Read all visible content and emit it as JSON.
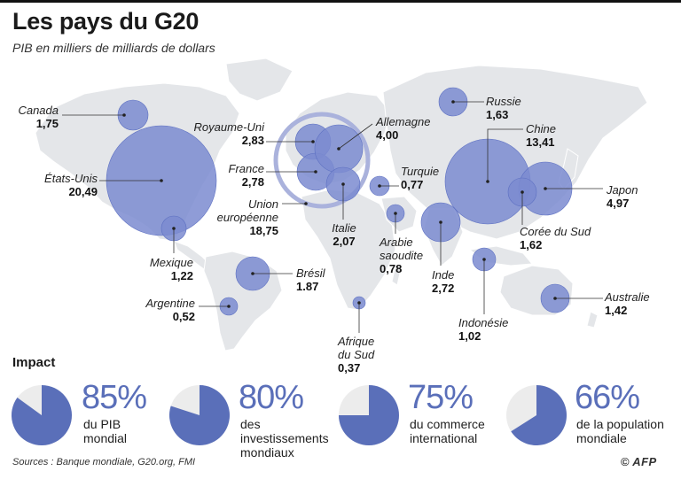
{
  "title": "Les pays du G20",
  "subtitle": "PIB en milliers de milliards de dollars",
  "countries": [
    {
      "name": "Canada",
      "value": "1,75"
    },
    {
      "name": "États-Unis",
      "value": "20,49"
    },
    {
      "name": "Mexique",
      "value": "1,22"
    },
    {
      "name": "Brésil",
      "value": "1.87"
    },
    {
      "name": "Argentine",
      "value": "0,52"
    },
    {
      "name": "Royaume-Uni",
      "value": "2,83"
    },
    {
      "name": "France",
      "value": "2,78"
    },
    {
      "name": "Union européenne",
      "value": "18,75"
    },
    {
      "name": "Allemagne",
      "value": "4,00"
    },
    {
      "name": "Italie",
      "value": "2,07"
    },
    {
      "name": "Turquie",
      "value": "0,77"
    },
    {
      "name": "Arabie saoudite",
      "value": "0,78"
    },
    {
      "name": "Afrique du Sud",
      "value": "0,37"
    },
    {
      "name": "Russie",
      "value": "1,63"
    },
    {
      "name": "Chine",
      "value": "13,41"
    },
    {
      "name": "Inde",
      "value": "2,72"
    },
    {
      "name": "Japon",
      "value": "4,97"
    },
    {
      "name": "Corée du Sud",
      "value": "1,62"
    },
    {
      "name": "Indonésie",
      "value": "1,02"
    },
    {
      "name": "Australie",
      "value": "1,42"
    }
  ],
  "impact": {
    "title": "Impact",
    "items": [
      {
        "percent": "85%",
        "fraction": 0.85,
        "desc_lines": [
          "du PIB",
          "mondial"
        ]
      },
      {
        "percent": "80%",
        "fraction": 0.8,
        "desc_lines": [
          "des",
          "investissements",
          "mondiaux"
        ]
      },
      {
        "percent": "75%",
        "fraction": 0.75,
        "desc_lines": [
          "du commerce",
          "international"
        ]
      },
      {
        "percent": "66%",
        "fraction": 0.66,
        "desc_lines": [
          "de la population",
          "mondiale"
        ]
      }
    ]
  },
  "sources": "Sources : Banque mondiale, G20.org, FMI",
  "credit": {
    "symbol": "©",
    "agency": "AFP"
  },
  "colors": {
    "bubble": "#7b8bd0",
    "bubble_stroke": "#5d70c2",
    "land": "#e4e6e9",
    "pie_fill": "#5a6fb9",
    "pie_bg": "#ececec",
    "accent_text": "#5a6fb9"
  }
}
